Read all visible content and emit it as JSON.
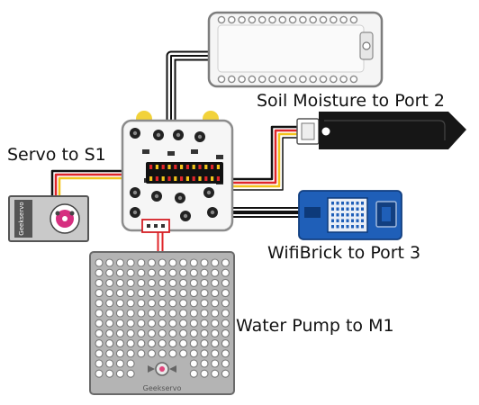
{
  "labels": {
    "soil": "Soil Moisture to Port 2",
    "servo": "Servo to S1",
    "wifi": "WifiBrick to Port 3",
    "pump": "Water Pump to M1"
  },
  "components": {
    "top_module": "breakout-module",
    "controller": "main-controller-board",
    "soil_sensor": "soil-moisture-sensor",
    "servo": "servo-motor",
    "wifi": "wifibrick-module",
    "pump": "water-pump-motor-plate"
  },
  "brand_marks": {
    "servo": "Geekservo",
    "pump": "Geekservo"
  },
  "colors": {
    "wire_black": "#111111",
    "wire_red": "#e0262a",
    "wire_yellow": "#f2c31b",
    "wire_white": "#ffffff",
    "board_white": "#f4f4f4",
    "board_edge": "#9a9a9a",
    "gray_plate": "#b4b4b4",
    "wifi_blue": "#1f5fb8",
    "sensor_black": "#161616"
  }
}
